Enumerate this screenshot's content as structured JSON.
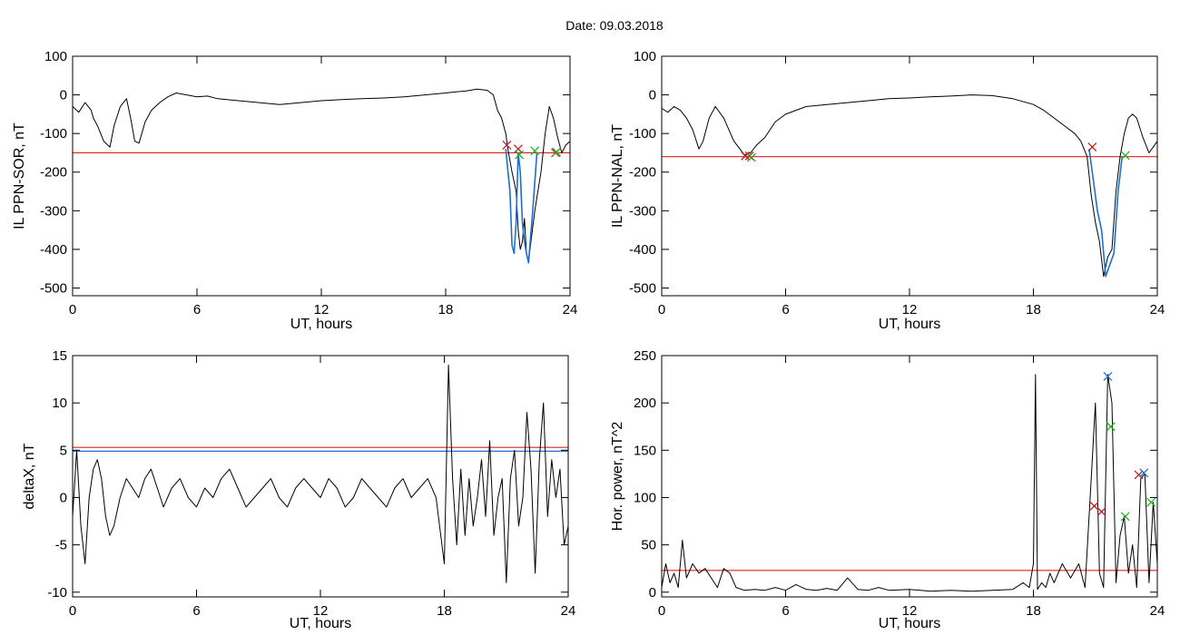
{
  "figure": {
    "title": "Date:  09.03.2018"
  },
  "chart_data": [
    {
      "type": "line",
      "panel": "top-left",
      "xlabel": "UT, hours",
      "ylabel": "IL PPN-SOR, nT",
      "xlim": [
        0,
        24
      ],
      "ylim": [
        -520,
        100
      ],
      "xticks": [
        0,
        6,
        12,
        18,
        24
      ],
      "yticks": [
        100,
        0,
        -100,
        -200,
        -300,
        -400,
        -500
      ],
      "grid": false,
      "series": [
        {
          "color": "#000000",
          "x": [
            0,
            0.3,
            0.6,
            0.9,
            1.0,
            1.2,
            1.5,
            1.8,
            2.0,
            2.3,
            2.6,
            2.8,
            3.0,
            3.2,
            3.5,
            3.8,
            4.2,
            4.6,
            5.0,
            5.5,
            6.0,
            6.5,
            7.0,
            8.0,
            9.0,
            10.0,
            11.0,
            12.0,
            13.0,
            14.0,
            15.0,
            16.0,
            17.0,
            18.0,
            18.5,
            19.0,
            19.5,
            20.0,
            20.3,
            20.5,
            20.7,
            20.9,
            21.0,
            21.2,
            21.4,
            21.5,
            21.6,
            21.7,
            21.8,
            21.9,
            22.0,
            22.3,
            22.6,
            22.8,
            23.0,
            23.2,
            23.4,
            23.6,
            23.8,
            24.0
          ],
          "y": [
            -30,
            -45,
            -20,
            -40,
            -60,
            -80,
            -120,
            -135,
            -80,
            -30,
            -10,
            -60,
            -120,
            -125,
            -70,
            -40,
            -20,
            -5,
            5,
            0,
            -5,
            -3,
            -10,
            -15,
            -20,
            -25,
            -20,
            -15,
            -12,
            -10,
            -8,
            -5,
            0,
            5,
            8,
            10,
            15,
            12,
            0,
            -40,
            -60,
            -100,
            -140,
            -200,
            -250,
            -350,
            -400,
            -380,
            -320,
            -410,
            -430,
            -300,
            -200,
            -100,
            -30,
            -60,
            -110,
            -150,
            -130,
            -120
          ]
        },
        {
          "color": "#1e6fd0",
          "x": [
            20.9,
            21.1,
            21.2,
            21.3,
            21.4,
            21.5,
            21.6,
            21.7,
            21.8,
            21.9,
            22.0,
            22.2,
            22.4
          ],
          "y": [
            -140,
            -250,
            -390,
            -410,
            -330,
            -150,
            -200,
            -330,
            -380,
            -410,
            -435,
            -300,
            -150
          ]
        }
      ],
      "threshold_lines": [
        {
          "y": -150,
          "color": "#e02020"
        }
      ],
      "markers": [
        {
          "x": 20.95,
          "y": -130,
          "color": "#c02020",
          "symbol": "x"
        },
        {
          "x": 21.5,
          "y": -140,
          "color": "#c02020",
          "symbol": "x"
        },
        {
          "x": 21.55,
          "y": -155,
          "color": "#20b020",
          "symbol": "x"
        },
        {
          "x": 22.3,
          "y": -145,
          "color": "#20b020",
          "symbol": "x"
        },
        {
          "x": 23.3,
          "y": -150,
          "color": "#c02020",
          "symbol": "x"
        },
        {
          "x": 23.35,
          "y": -148,
          "color": "#20b020",
          "symbol": "x"
        }
      ]
    },
    {
      "type": "line",
      "panel": "top-right",
      "xlabel": "UT, hours",
      "ylabel": "IL PPN-NAL, nT",
      "xlim": [
        0,
        24
      ],
      "ylim": [
        -520,
        100
      ],
      "xticks": [
        0,
        6,
        12,
        18,
        24
      ],
      "yticks": [
        100,
        0,
        -100,
        -200,
        -300,
        -400,
        -500
      ],
      "grid": false,
      "series": [
        {
          "color": "#000000",
          "x": [
            0,
            0.3,
            0.6,
            0.9,
            1.2,
            1.5,
            1.8,
            2.0,
            2.3,
            2.6,
            3.0,
            3.5,
            4.0,
            4.3,
            4.6,
            5.0,
            5.5,
            6.0,
            7.0,
            8.0,
            9.0,
            10.0,
            11.0,
            12.0,
            13.0,
            14.0,
            15.0,
            16.0,
            17.0,
            18.0,
            18.5,
            19.0,
            19.5,
            20.0,
            20.3,
            20.6,
            20.8,
            21.0,
            21.2,
            21.4,
            21.6,
            21.8,
            22.0,
            22.2,
            22.4,
            22.6,
            22.8,
            23.0,
            23.3,
            23.6,
            24.0
          ],
          "y": [
            -35,
            -45,
            -30,
            -40,
            -60,
            -90,
            -140,
            -120,
            -60,
            -30,
            -60,
            -120,
            -155,
            -150,
            -130,
            -110,
            -70,
            -50,
            -30,
            -25,
            -20,
            -15,
            -10,
            -8,
            -5,
            -3,
            0,
            -2,
            -10,
            -25,
            -40,
            -60,
            -80,
            -100,
            -120,
            -160,
            -260,
            -330,
            -380,
            -470,
            -420,
            -400,
            -250,
            -160,
            -100,
            -60,
            -50,
            -60,
            -110,
            -150,
            -120
          ]
        },
        {
          "color": "#1e6fd0",
          "x": [
            20.7,
            20.9,
            21.1,
            21.3,
            21.5,
            21.7,
            21.9,
            22.1,
            22.3
          ],
          "y": [
            -140,
            -220,
            -300,
            -350,
            -470,
            -440,
            -410,
            -250,
            -160
          ]
        }
      ],
      "threshold_lines": [
        {
          "y": -160,
          "color": "#e02020"
        }
      ],
      "markers": [
        {
          "x": 4.05,
          "y": -158,
          "color": "#c02020",
          "symbol": "x"
        },
        {
          "x": 4.25,
          "y": -158,
          "color": "#c02020",
          "symbol": "x"
        },
        {
          "x": 4.35,
          "y": -162,
          "color": "#20b020",
          "symbol": "x"
        },
        {
          "x": 20.85,
          "y": -135,
          "color": "#c02020",
          "symbol": "x"
        },
        {
          "x": 22.45,
          "y": -157,
          "color": "#20b020",
          "symbol": "x"
        }
      ]
    },
    {
      "type": "line",
      "panel": "bottom-left",
      "xlabel": "UT, hours",
      "ylabel": "deltaX, nT",
      "xlim": [
        0,
        24
      ],
      "ylim": [
        -10.5,
        15
      ],
      "xticks": [
        0,
        6,
        12,
        18,
        24
      ],
      "yticks": [
        15,
        10,
        5,
        0,
        -5,
        -10
      ],
      "grid": false,
      "series": [
        {
          "color": "#000000",
          "x": [
            0,
            0.2,
            0.4,
            0.6,
            0.8,
            1.0,
            1.2,
            1.4,
            1.6,
            1.8,
            2.0,
            2.3,
            2.6,
            2.9,
            3.2,
            3.5,
            3.8,
            4.1,
            4.4,
            4.8,
            5.2,
            5.6,
            6.0,
            6.4,
            6.8,
            7.2,
            7.6,
            8.0,
            8.4,
            8.8,
            9.2,
            9.6,
            10.0,
            10.4,
            10.8,
            11.2,
            11.6,
            12.0,
            12.4,
            12.8,
            13.2,
            13.6,
            14.0,
            14.4,
            14.8,
            15.2,
            15.6,
            16.0,
            16.4,
            16.8,
            17.2,
            17.6,
            18.0,
            18.2,
            18.4,
            18.6,
            18.8,
            19.0,
            19.2,
            19.4,
            19.6,
            19.8,
            20.0,
            20.2,
            20.4,
            20.6,
            20.8,
            21.0,
            21.2,
            21.4,
            21.6,
            21.8,
            22.0,
            22.2,
            22.4,
            22.6,
            22.8,
            23.0,
            23.2,
            23.4,
            23.6,
            23.8,
            24.0
          ],
          "y": [
            -2,
            5,
            -3,
            -7,
            0,
            3,
            4,
            2,
            -2,
            -4,
            -3,
            0,
            2,
            1,
            0,
            2,
            3,
            1,
            -1,
            1,
            2,
            0,
            -1,
            1,
            0,
            2,
            3,
            1,
            -1,
            0,
            1,
            2,
            0,
            -1,
            1,
            2,
            1,
            0,
            2,
            1,
            -1,
            0,
            2,
            1,
            0,
            -1,
            1,
            2,
            0,
            1,
            2,
            0,
            -7,
            14,
            2,
            -5,
            3,
            -4,
            2,
            -3,
            0,
            4,
            -2,
            6,
            -4,
            0,
            2,
            -9,
            2,
            5,
            -3,
            0,
            9,
            3,
            -8,
            4,
            10,
            -2,
            4,
            0,
            3,
            -5,
            -3
          ]
        }
      ],
      "threshold_lines": [
        {
          "y": 5.3,
          "color": "#e02020"
        },
        {
          "y": 4.9,
          "color": "#1e6fd0"
        }
      ],
      "markers": []
    },
    {
      "type": "line",
      "panel": "bottom-right",
      "xlabel": "UT, hours",
      "ylabel": "Hor. power, nT^2",
      "xlim": [
        0,
        24
      ],
      "ylim": [
        -5,
        250
      ],
      "xticks": [
        0,
        6,
        12,
        18,
        24
      ],
      "yticks": [
        250,
        200,
        150,
        100,
        50,
        0
      ],
      "grid": false,
      "series": [
        {
          "color": "#000000",
          "x": [
            0,
            0.2,
            0.4,
            0.6,
            0.8,
            1.0,
            1.2,
            1.5,
            1.8,
            2.1,
            2.4,
            2.7,
            3.0,
            3.3,
            3.6,
            4.0,
            4.5,
            5.0,
            5.5,
            6.0,
            6.5,
            7.0,
            7.5,
            8.0,
            8.5,
            9.0,
            9.5,
            10.0,
            10.5,
            11.0,
            12.0,
            13.0,
            14.0,
            15.0,
            16.0,
            17.0,
            17.5,
            17.8,
            18.0,
            18.1,
            18.2,
            18.4,
            18.6,
            18.8,
            19.0,
            19.4,
            19.8,
            20.2,
            20.5,
            20.8,
            21.0,
            21.2,
            21.4,
            21.6,
            21.8,
            22.0,
            22.2,
            22.4,
            22.6,
            22.8,
            23.0,
            23.2,
            23.4,
            23.6,
            23.8,
            24.0
          ],
          "y": [
            5,
            30,
            10,
            20,
            5,
            55,
            15,
            30,
            20,
            25,
            15,
            5,
            25,
            20,
            5,
            2,
            3,
            2,
            5,
            2,
            8,
            3,
            2,
            4,
            2,
            15,
            3,
            2,
            5,
            2,
            3,
            1,
            2,
            1,
            2,
            3,
            10,
            5,
            30,
            230,
            3,
            10,
            5,
            20,
            10,
            30,
            15,
            30,
            5,
            120,
            200,
            20,
            5,
            230,
            200,
            10,
            60,
            80,
            20,
            50,
            5,
            120,
            125,
            10,
            95,
            30
          ]
        }
      ],
      "threshold_lines": [
        {
          "y": 23,
          "color": "#e02020"
        }
      ],
      "markers": [
        {
          "x": 20.95,
          "y": 91,
          "color": "#c02020",
          "symbol": "x"
        },
        {
          "x": 21.3,
          "y": 85,
          "color": "#c02020",
          "symbol": "x"
        },
        {
          "x": 21.6,
          "y": 228,
          "color": "#1e6fd0",
          "symbol": "x"
        },
        {
          "x": 21.75,
          "y": 175,
          "color": "#20b020",
          "symbol": "x"
        },
        {
          "x": 22.45,
          "y": 80,
          "color": "#20b020",
          "symbol": "x"
        },
        {
          "x": 23.1,
          "y": 124,
          "color": "#c02020",
          "symbol": "x"
        },
        {
          "x": 23.35,
          "y": 126,
          "color": "#1e6fd0",
          "symbol": "x"
        },
        {
          "x": 23.7,
          "y": 95,
          "color": "#20b020",
          "symbol": "x"
        }
      ]
    }
  ]
}
